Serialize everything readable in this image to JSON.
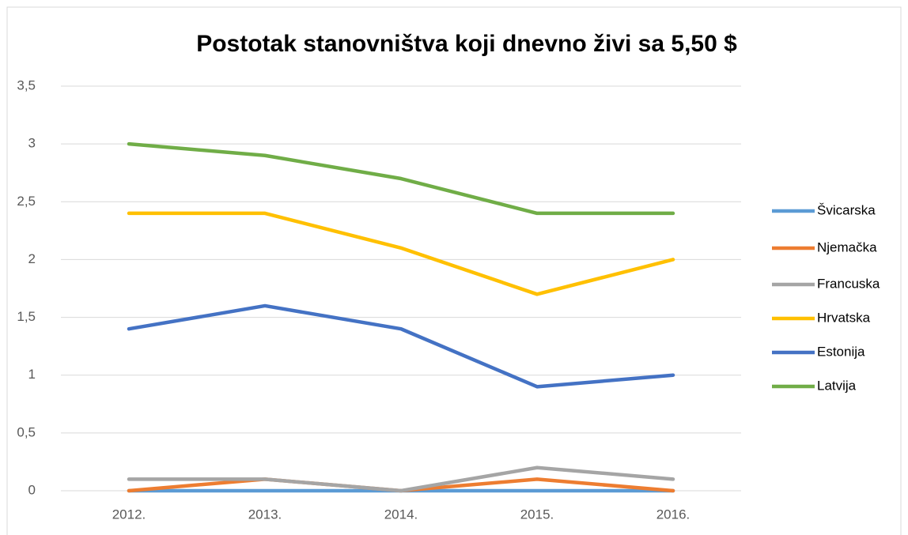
{
  "chart_data": {
    "type": "line",
    "title": "Postotak stanovništva koji dnevno živi sa 5,50 $",
    "categories": [
      "2012.",
      "2013.",
      "2014.",
      "2015.",
      "2016."
    ],
    "series": [
      {
        "name": "Švicarska",
        "color": "#5b9bd5",
        "values": [
          0,
          0,
          0,
          0,
          0
        ]
      },
      {
        "name": "Njemačka",
        "color": "#ed7d31",
        "values": [
          0,
          0.1,
          0,
          0.1,
          0
        ]
      },
      {
        "name": "Francuska",
        "color": "#a5a5a5",
        "values": [
          0.1,
          0.1,
          0,
          0.2,
          0.1
        ]
      },
      {
        "name": "Hrvatska",
        "color": "#ffc000",
        "values": [
          2.4,
          2.4,
          2.1,
          1.7,
          2.0
        ]
      },
      {
        "name": "Estonija",
        "color": "#4472c4",
        "values": [
          1.4,
          1.6,
          1.4,
          0.9,
          1.0
        ]
      },
      {
        "name": "Latvija",
        "color": "#70ad47",
        "values": [
          3.0,
          2.9,
          2.7,
          2.4,
          2.4
        ]
      }
    ],
    "ylim": [
      0,
      3.5
    ],
    "yticks": [
      0,
      {
        "value": 0.5,
        "label": "0,5"
      },
      1,
      {
        "value": 1.5,
        "label": "1,5"
      },
      2,
      {
        "value": 2.5,
        "label": "2,5"
      },
      3,
      {
        "value": 3.5,
        "label": "3,5"
      }
    ],
    "grid": true,
    "legend": "right"
  }
}
